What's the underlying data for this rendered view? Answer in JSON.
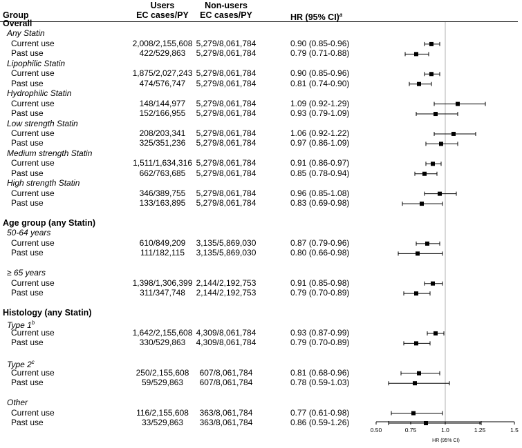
{
  "header": {
    "group": "Group",
    "users_line1": "Users",
    "users_line2": "EC cases/PY",
    "nonusers_line1": "Non-users",
    "nonusers_line2": "EC cases/PY",
    "hr": "HR (95% CI)",
    "hr_sup": "a"
  },
  "chart_data": {
    "type": "forest",
    "xlabel": "HR (95% CI)",
    "xlim": [
      0.5,
      1.5
    ],
    "xticks": [
      0.5,
      0.75,
      1.0,
      1.25,
      1.5
    ],
    "xtick_labels": [
      "0.50",
      "0.75",
      "1.0",
      "1.25",
      "1.5"
    ],
    "reference_line": 1.0,
    "rows": [
      {
        "kind": "section",
        "label": "Overall"
      },
      {
        "kind": "sub",
        "label": "Any Statin"
      },
      {
        "kind": "data",
        "label": "Current use",
        "users": "2,008/2,155,608",
        "nonusers": "5,279/8,061,784",
        "hr_text": "0.90 (0.85-0.96)",
        "hr": 0.9,
        "lo": 0.85,
        "hi": 0.96
      },
      {
        "kind": "data",
        "label": "Past use",
        "users": "422/529,863",
        "nonusers": "5,279/8,061,784",
        "hr_text": "0.79 (0.71-0.88)",
        "hr": 0.79,
        "lo": 0.71,
        "hi": 0.88
      },
      {
        "kind": "sub",
        "label": "Lipophilic Statin"
      },
      {
        "kind": "data",
        "label": "Current use",
        "users": "1,875/2,027,243",
        "nonusers": "5,279/8,061,784",
        "hr_text": "0.90 (0.85-0.96)",
        "hr": 0.9,
        "lo": 0.85,
        "hi": 0.96
      },
      {
        "kind": "data",
        "label": "Past use",
        "users": "474/576,747",
        "nonusers": "5,279/8,061,784",
        "hr_text": "0.81 (0.74-0.90)",
        "hr": 0.81,
        "lo": 0.74,
        "hi": 0.9
      },
      {
        "kind": "sub",
        "label": "Hydrophilic Statin"
      },
      {
        "kind": "data",
        "label": "Current use",
        "users": "148/144,977",
        "nonusers": "5,279/8,061,784",
        "hr_text": "1.09 (0.92-1.29)",
        "hr": 1.09,
        "lo": 0.92,
        "hi": 1.29
      },
      {
        "kind": "data",
        "label": "Past use",
        "users": "152/166,955",
        "nonusers": "5,279/8,061,784",
        "hr_text": "0.93 (0.79-1.09)",
        "hr": 0.93,
        "lo": 0.79,
        "hi": 1.09
      },
      {
        "kind": "sub",
        "label": "Low strength Statin"
      },
      {
        "kind": "data",
        "label": "Current use",
        "users": "208/203,341",
        "nonusers": "5,279/8,061,784",
        "hr_text": "1.06 (0.92-1.22)",
        "hr": 1.06,
        "lo": 0.92,
        "hi": 1.22
      },
      {
        "kind": "data",
        "label": "Past use",
        "users": "325/351,236",
        "nonusers": "5,279/8,061,784",
        "hr_text": "0.97 (0.86-1.09)",
        "hr": 0.97,
        "lo": 0.86,
        "hi": 1.09
      },
      {
        "kind": "sub",
        "label": "Medium strength Statin"
      },
      {
        "kind": "data",
        "label": "Current use",
        "users": "1,511/1,634,316",
        "nonusers": "5,279/8,061,784",
        "hr_text": "0.91 (0.86-0.97)",
        "hr": 0.91,
        "lo": 0.86,
        "hi": 0.97
      },
      {
        "kind": "data",
        "label": "Past use",
        "users": "662/763,685",
        "nonusers": "5,279/8,061,784",
        "hr_text": "0.85 (0.78-0.94)",
        "hr": 0.85,
        "lo": 0.78,
        "hi": 0.94
      },
      {
        "kind": "sub",
        "label": "High strength Statin"
      },
      {
        "kind": "data",
        "label": "Current use",
        "users": "346/389,755",
        "nonusers": "5,279/8,061,784",
        "hr_text": "0.96 (0.85-1.08)",
        "hr": 0.96,
        "lo": 0.85,
        "hi": 1.08
      },
      {
        "kind": "data",
        "label": "Past use",
        "users": "133/163,895",
        "nonusers": "5,279/8,061,784",
        "hr_text": "0.83 (0.69-0.98)",
        "hr": 0.83,
        "lo": 0.69,
        "hi": 0.98
      },
      {
        "kind": "gap"
      },
      {
        "kind": "section",
        "label": "Age group (any Statin)"
      },
      {
        "kind": "sub",
        "label": "50-64 years"
      },
      {
        "kind": "data",
        "label": "Current use",
        "users": "610/849,209",
        "nonusers": "3,135/5,869,030",
        "hr_text": "0.87 (0.79-0.96)",
        "hr": 0.87,
        "lo": 0.79,
        "hi": 0.96
      },
      {
        "kind": "data",
        "label": "Past use",
        "users": "111/182,115",
        "nonusers": "3,135/5,869,030",
        "hr_text": "0.80 (0.66-0.98)",
        "hr": 0.8,
        "lo": 0.66,
        "hi": 0.98
      },
      {
        "kind": "gap"
      },
      {
        "kind": "sub",
        "label": "≥ 65 years"
      },
      {
        "kind": "data",
        "label": "Current use",
        "users": "1,398/1,306,399",
        "nonusers": "2,144/2,192,753",
        "hr_text": "0.91 (0.85-0.98)",
        "hr": 0.91,
        "lo": 0.85,
        "hi": 0.98
      },
      {
        "kind": "data",
        "label": "Past use",
        "users": "311/347,748",
        "nonusers": "2,144/2,192,753",
        "hr_text": "0.79 (0.70-0.89)",
        "hr": 0.79,
        "lo": 0.7,
        "hi": 0.89
      },
      {
        "kind": "gap"
      },
      {
        "kind": "section",
        "label": "Histology (any Statin)"
      },
      {
        "kind": "sub",
        "label": "Type 1",
        "sup": "b"
      },
      {
        "kind": "data",
        "label": "Current use",
        "users": "1,642/2,155,608",
        "nonusers": "4,309/8,061,784",
        "hr_text": "0.93 (0.87-0.99)",
        "hr": 0.93,
        "lo": 0.87,
        "hi": 0.99
      },
      {
        "kind": "data",
        "label": "Past use",
        "users": "330/529,863",
        "nonusers": "4,309/8,061,784",
        "hr_text": "0.79 (0.70-0.89)",
        "hr": 0.79,
        "lo": 0.7,
        "hi": 0.89
      },
      {
        "kind": "gap"
      },
      {
        "kind": "sub",
        "label": "Type 2",
        "sup": "c"
      },
      {
        "kind": "data",
        "label": "Current use",
        "users": "250/2,155,608",
        "nonusers": "607/8,061,784",
        "hr_text": "0.81 (0.68-0.96)",
        "hr": 0.81,
        "lo": 0.68,
        "hi": 0.96
      },
      {
        "kind": "data",
        "label": "Past use",
        "users": "59/529,863",
        "nonusers": "607/8,061,784",
        "hr_text": "0.78 (0.59-1.03)",
        "hr": 0.78,
        "lo": 0.59,
        "hi": 1.03
      },
      {
        "kind": "gap"
      },
      {
        "kind": "sub",
        "label": "Other"
      },
      {
        "kind": "data",
        "label": "Current use",
        "users": "116/2,155,608",
        "nonusers": "363/8,061,784",
        "hr_text": "0.77 (0.61-0.98)",
        "hr": 0.77,
        "lo": 0.61,
        "hi": 0.98
      },
      {
        "kind": "data",
        "label": "Past use",
        "users": "33/529,863",
        "nonusers": "363/8,061,784",
        "hr_text": "0.86 (0.59-1.26)",
        "hr": 0.86,
        "lo": 0.59,
        "hi": 1.26
      }
    ]
  }
}
